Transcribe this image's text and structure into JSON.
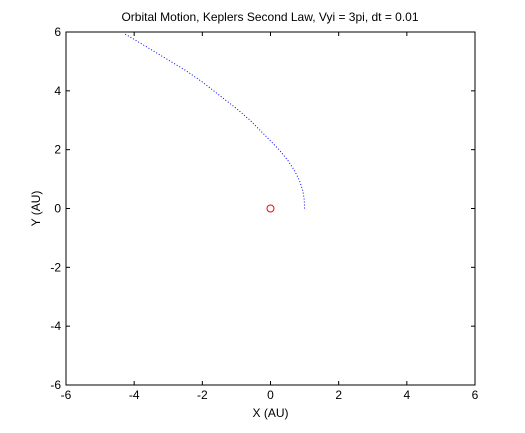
{
  "chart_data": {
    "type": "line",
    "title": "Orbital Motion, Keplers Second Law, Vyi = 3pi, dt = 0.01",
    "xlabel": "X (AU)",
    "ylabel": "Y (AU)",
    "xlim": [
      -6,
      6
    ],
    "ylim": [
      -6,
      6
    ],
    "xticks": [
      -6,
      -4,
      -2,
      0,
      2,
      4,
      6
    ],
    "yticks": [
      -6,
      -4,
      -2,
      0,
      2,
      4,
      6
    ],
    "grid": false,
    "series": [
      {
        "style": "dotted",
        "color": "#0000ff",
        "x": [
          1.0,
          0.99,
          0.95,
          0.85,
          0.7,
          0.5,
          0.25,
          0.0,
          -0.3,
          -0.6,
          -1.0,
          -1.5,
          -2.0,
          -2.5,
          -3.0,
          -3.5,
          -4.0,
          -4.3
        ],
        "y": [
          0.0,
          0.3,
          0.6,
          0.95,
          1.3,
          1.65,
          2.0,
          2.3,
          2.65,
          3.0,
          3.4,
          3.85,
          4.3,
          4.7,
          5.05,
          5.4,
          5.75,
          5.95
        ]
      },
      {
        "style": "marker",
        "marker": "circle",
        "color": "#ff0000",
        "x": [
          0
        ],
        "y": [
          0
        ]
      }
    ]
  }
}
